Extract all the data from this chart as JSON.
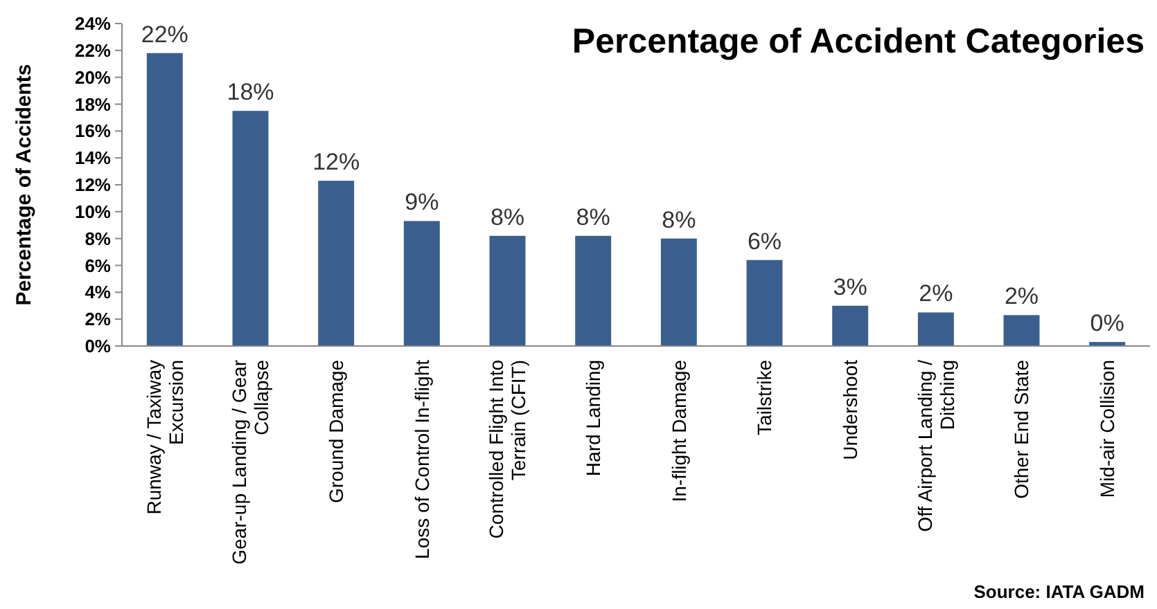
{
  "chart_data": {
    "type": "bar",
    "title": "Percentage of Accident Categories",
    "ylabel": "Percentage of Accidents",
    "categories": [
      "Runway / Taxiway Excursion",
      "Gear-up Landing / Gear Collapse",
      "Ground Damage",
      "Loss of Control In-flight",
      "Controlled Flight Into Terrain (CFIT)",
      "Hard Landing",
      "In-flight Damage",
      "Tailstrike",
      "Undershoot",
      "Off Airport Landing / Ditching",
      "Other End State",
      "Mid-air Collision"
    ],
    "values": [
      21.8,
      17.5,
      12.3,
      9.3,
      8.2,
      8.2,
      8.0,
      6.4,
      3.0,
      2.5,
      2.3,
      0.3
    ],
    "value_labels": [
      "22%",
      "18%",
      "12%",
      "9%",
      "8%",
      "8%",
      "8%",
      "6%",
      "3%",
      "2%",
      "2%",
      "0%"
    ],
    "color": "#3a5f8f",
    "ylim": [
      0,
      24
    ],
    "yticks": [
      {
        "value": 0,
        "label": "0%"
      },
      {
        "value": 2,
        "label": "2%"
      },
      {
        "value": 4,
        "label": "4%"
      },
      {
        "value": 6,
        "label": "6%"
      },
      {
        "value": 8,
        "label": "8%"
      },
      {
        "value": 10,
        "label": "10%"
      },
      {
        "value": 12,
        "label": "12%"
      },
      {
        "value": 14,
        "label": "14%"
      },
      {
        "value": 16,
        "label": "16%"
      },
      {
        "value": 18,
        "label": "18%"
      },
      {
        "value": 20,
        "label": "20%"
      },
      {
        "value": 22,
        "label": "22%"
      },
      {
        "value": 24,
        "label": "24%"
      }
    ],
    "grid": false,
    "annotations": [
      "Source: IATA GADM"
    ]
  }
}
